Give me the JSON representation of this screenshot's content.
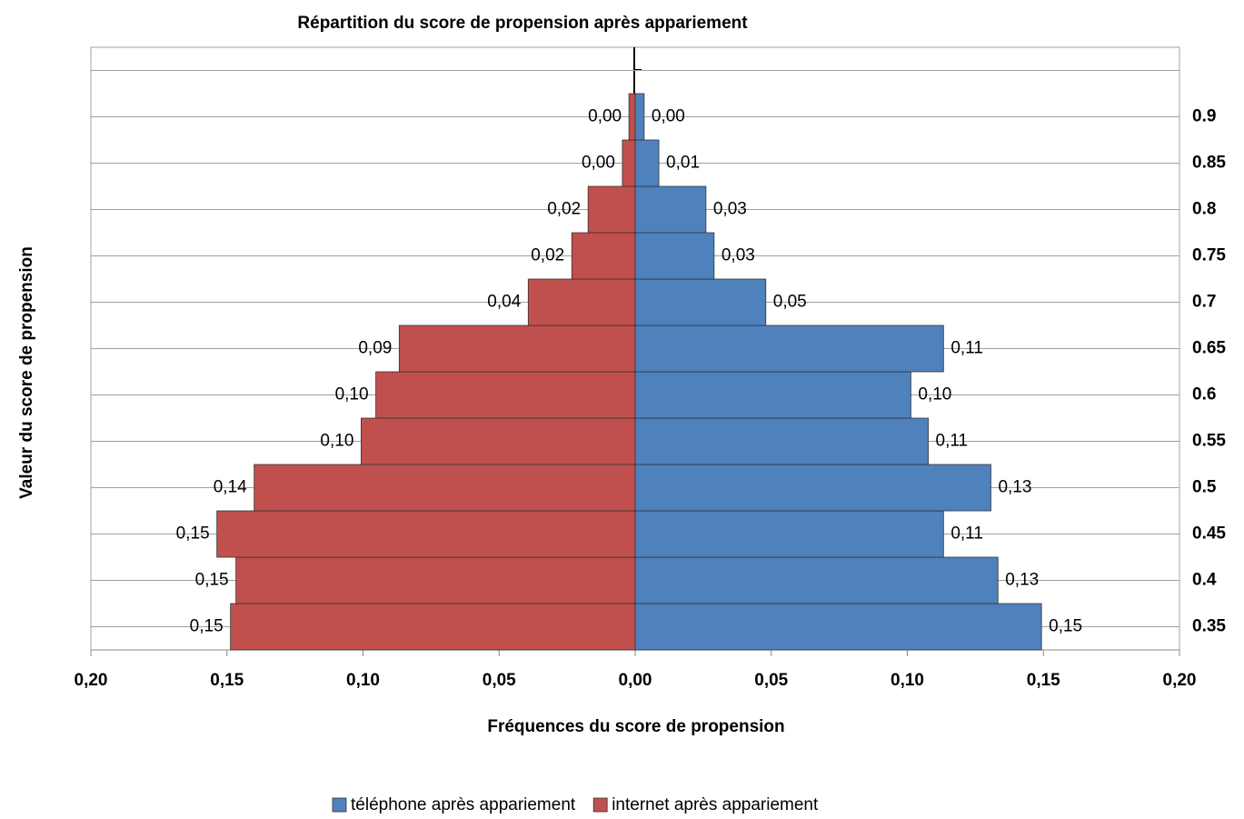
{
  "chart_data": {
    "type": "pyramid",
    "title": "Répartition du score de propension après appariement",
    "x_label": "Fréquences du score de propension",
    "y_label": "Valeur du score de propension",
    "categories": [
      "0.35",
      "0.4",
      "0.45",
      "0.5",
      "0.55",
      "0.6",
      "0.65",
      "0.7",
      "0.75",
      "0.8",
      "0.85",
      "0.9",
      null
    ],
    "series": [
      {
        "name": "téléphone après appariement",
        "color": "#4f81bd",
        "values": [
          0.1493,
          0.1333,
          0.1133,
          0.1307,
          0.1077,
          0.1013,
          0.1133,
          0.048,
          0.029,
          0.026,
          0.0087,
          0.0033,
          null
        ],
        "value_labels": [
          "0,15",
          "0,13",
          "0,11",
          "0,13",
          "0,11",
          "0,10",
          "0,11",
          "0,05",
          "0,03",
          "0,03",
          "0,01",
          "0,00",
          null
        ]
      },
      {
        "name": "internet après appariement",
        "color": "#c0504d",
        "values": [
          -0.1487,
          -0.1467,
          -0.1537,
          -0.14,
          -0.1007,
          -0.0953,
          -0.0867,
          -0.0393,
          -0.0233,
          -0.0173,
          -0.0047,
          -0.0023,
          null
        ],
        "value_labels": [
          "0,15",
          "0,15",
          "0,15",
          "0,14",
          "0,10",
          "0,10",
          "0,09",
          "0,04",
          "0,02",
          "0,02",
          "0,00",
          "0,00",
          null
        ]
      }
    ],
    "xlim": [
      -0.2,
      0.2
    ],
    "xticks": [
      {
        "value": -0.2,
        "label": "0,20"
      },
      {
        "value": -0.15,
        "label": "0,15"
      },
      {
        "value": -0.1,
        "label": "0,10"
      },
      {
        "value": -0.05,
        "label": "0,05"
      },
      {
        "value": 0,
        "label": "0,00"
      },
      {
        "value": 0.05,
        "label": "0,05"
      },
      {
        "value": 0.1,
        "label": "0,10"
      },
      {
        "value": 0.15,
        "label": "0,15"
      },
      {
        "value": 0.2,
        "label": "0,20"
      }
    ],
    "legend": "bottom",
    "grid": true
  }
}
